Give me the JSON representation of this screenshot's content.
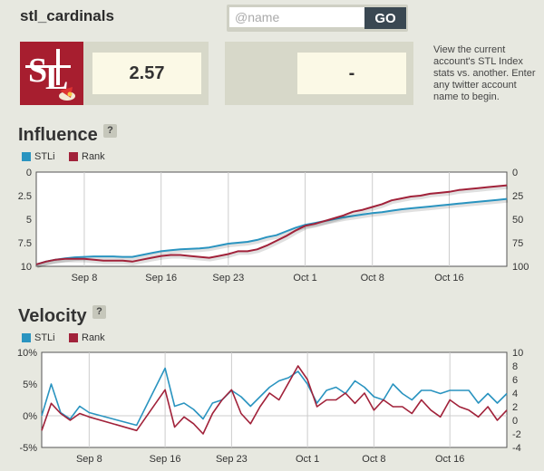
{
  "header": {
    "account_name": "stl_cardinals"
  },
  "search": {
    "placeholder": "@name",
    "go_label": "GO"
  },
  "primary": {
    "score": "2.57"
  },
  "compare": {
    "score": "-"
  },
  "help_text": "View the current account's STL Index stats vs. another. Enter any twitter account name to begin.",
  "colors": {
    "stli": "#2a94c0",
    "rank": "#a1223a"
  },
  "influence": {
    "title": "Influence",
    "help_label": "?",
    "legend": [
      "STLi",
      "Rank"
    ],
    "chart_data": {
      "type": "line",
      "x_labels": [
        "Sep 8",
        "Sep 16",
        "Sep 23",
        "Oct 1",
        "Oct 8",
        "Oct 16"
      ],
      "y_left_ticks": [
        "0",
        "2.5",
        "5",
        "7.5",
        "10"
      ],
      "y_right_ticks": [
        "0",
        "25",
        "50",
        "75",
        "100"
      ],
      "y_left_range": [
        0,
        10
      ],
      "y_right_range": [
        0,
        100
      ],
      "inverted_axes": true,
      "x_count": 50,
      "x_label_index": [
        5,
        13,
        20,
        28,
        35,
        43
      ],
      "series": [
        {
          "name": "STLi",
          "axis": "left",
          "values": [
            9.8,
            9.5,
            9.3,
            9.15,
            9.05,
            9.0,
            8.95,
            8.95,
            8.95,
            9.0,
            9.0,
            8.8,
            8.6,
            8.4,
            8.3,
            8.2,
            8.15,
            8.1,
            8.0,
            7.8,
            7.6,
            7.5,
            7.4,
            7.2,
            6.9,
            6.7,
            6.3,
            5.9,
            5.6,
            5.4,
            5.2,
            5.0,
            4.8,
            4.65,
            4.5,
            4.35,
            4.25,
            4.1,
            3.95,
            3.85,
            3.75,
            3.65,
            3.55,
            3.45,
            3.35,
            3.25,
            3.15,
            3.05,
            2.95,
            2.85
          ]
        },
        {
          "name": "Rank",
          "axis": "right",
          "values": [
            98,
            95,
            93,
            92,
            92,
            92,
            93,
            94,
            94,
            94,
            95,
            93,
            91,
            89,
            88,
            88,
            89,
            90,
            91,
            89,
            87,
            84,
            84,
            82,
            78,
            73,
            68,
            62,
            57,
            55,
            52,
            49,
            46,
            42,
            40,
            37,
            34,
            30,
            28,
            26,
            25,
            23,
            22,
            21,
            19,
            18,
            17,
            16,
            15,
            14
          ]
        }
      ]
    }
  },
  "velocity": {
    "title": "Velocity",
    "help_label": "?",
    "legend": [
      "STLi",
      "Rank"
    ],
    "chart_data": {
      "type": "line",
      "x_labels": [
        "Sep 8",
        "Sep 16",
        "Sep 23",
        "Oct 1",
        "Oct 8",
        "Oct 16"
      ],
      "y_left_ticks": [
        "10%",
        "5%",
        "0%",
        "-5%"
      ],
      "y_right_ticks": [
        "10",
        "8",
        "6",
        "4",
        "2",
        "0",
        "-2",
        "-4"
      ],
      "y_left_range": [
        -5,
        10
      ],
      "y_right_range": [
        -4,
        10
      ],
      "x_count": 50,
      "x_label_index": [
        5,
        13,
        20,
        28,
        35,
        43
      ],
      "series": [
        {
          "name": "STLi",
          "axis": "left",
          "values": [
            0,
            5,
            0.5,
            -0.5,
            1.5,
            0.5,
            null,
            null,
            null,
            null,
            -1.5,
            null,
            null,
            7.5,
            1.5,
            2,
            1,
            -0.5,
            2,
            2.5,
            4,
            3,
            1.5,
            3,
            4.5,
            5.5,
            6,
            7,
            5,
            2,
            4,
            4.5,
            3.5,
            5.5,
            4.5,
            3,
            2.5,
            5,
            3.5,
            2.5,
            4,
            4,
            3.5,
            4,
            4,
            4,
            2,
            3.5,
            2,
            3.5
          ]
        },
        {
          "name": "Rank",
          "axis": "right",
          "values": [
            -1.5,
            2.5,
            1,
            0,
            1,
            0.5,
            null,
            null,
            null,
            null,
            -1.5,
            null,
            null,
            4.5,
            -1,
            0.5,
            -0.5,
            -2,
            1,
            3,
            4.5,
            1,
            -0.5,
            2,
            4,
            3,
            5.5,
            8,
            6,
            2,
            3,
            3,
            4,
            2.5,
            4,
            1.5,
            3,
            2,
            2,
            1,
            3,
            1.5,
            0.5,
            3,
            2,
            1.5,
            0.5,
            2,
            0,
            1.5
          ]
        }
      ]
    }
  }
}
